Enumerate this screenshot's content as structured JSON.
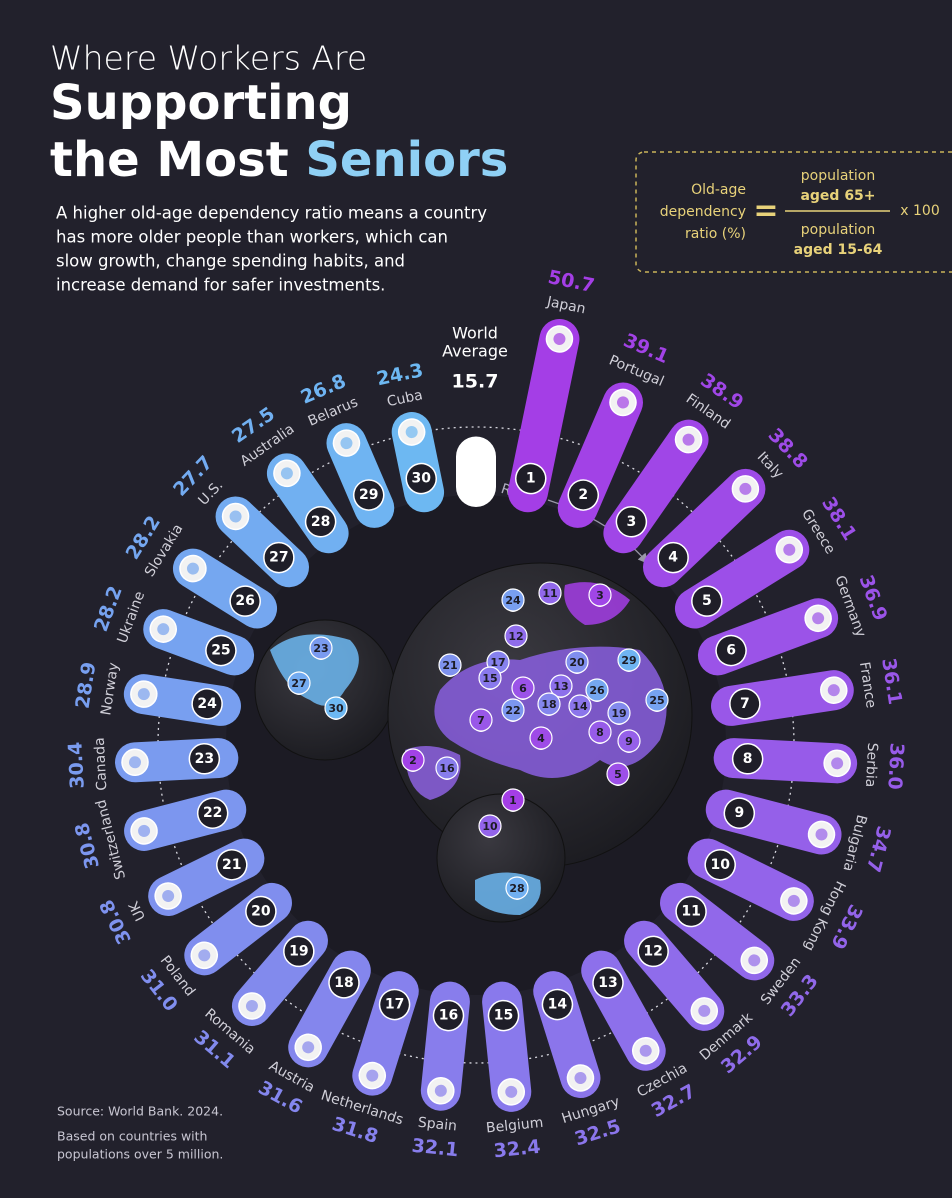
{
  "header": {
    "title": [
      "Where Workers Are",
      "Supporting",
      "the Most ",
      "Seniors"
    ],
    "description": [
      "A higher old-age dependency ratio means a country",
      "has more older people than workers, which can",
      "slow growth, change spending habits, and",
      "increase demand for safer investments."
    ]
  },
  "formula": {
    "label": [
      "Old-age",
      "dependency",
      "ratio (%)"
    ],
    "equals": "=",
    "numerator": [
      "population",
      "aged 65+"
    ],
    "denominator": [
      "population",
      "aged 15-64"
    ],
    "multiplier": "x 100"
  },
  "chart_data": {
    "type": "radial_bar",
    "categories": [
      "Japan",
      "Portugal",
      "Finland",
      "Italy",
      "Greece",
      "Germany",
      "France",
      "Serbia",
      "Bulgaria",
      "Hong Kong",
      "Sweden",
      "Denmark",
      "Czechia",
      "Hungary",
      "Belgium",
      "Spain",
      "Netherlands",
      "Austria",
      "Romania",
      "Poland",
      "UK",
      "Switzerland",
      "Canada",
      "Norway",
      "Ukraine",
      "Slovakia",
      "U.S.",
      "Australia",
      "Belarus",
      "Cuba"
    ],
    "values": [
      50.7,
      39.1,
      38.9,
      38.8,
      38.1,
      36.9,
      36.1,
      36.0,
      34.7,
      33.9,
      33.3,
      32.9,
      32.7,
      32.5,
      32.4,
      32.1,
      31.8,
      31.6,
      31.1,
      31.0,
      30.8,
      30.8,
      30.4,
      28.9,
      28.2,
      28.2,
      27.7,
      27.5,
      26.8,
      24.3
    ],
    "value_labels": [
      "50.7",
      "39.1",
      "38.9",
      "38.8",
      "38.1",
      "36.9",
      "36.1",
      "36.0",
      "34.7",
      "33.9",
      "33.3",
      "32.9",
      "32.7",
      "32.5",
      "32.4",
      "32.1",
      "31.8",
      "31.6",
      "31.1",
      "31.0",
      "30.8",
      "30.8",
      "30.4",
      "28.9",
      "28.2",
      "28.2",
      "27.7",
      "27.5",
      "26.8",
      "24.3"
    ],
    "ranks": [
      1,
      2,
      3,
      4,
      5,
      6,
      7,
      8,
      9,
      10,
      11,
      12,
      13,
      14,
      15,
      16,
      17,
      18,
      19,
      20,
      21,
      22,
      23,
      24,
      25,
      26,
      27,
      28,
      29,
      30
    ],
    "colors": [
      "#a43ee6",
      "#6db8f2"
    ],
    "world_average": {
      "label": [
        "World",
        "Average"
      ],
      "value": 15.7
    },
    "rank_label": "Rank"
  },
  "map_pins": [
    24,
    11,
    3,
    12,
    21,
    17,
    15,
    6,
    20,
    29,
    13,
    26,
    25,
    22,
    18,
    14,
    7,
    19,
    4,
    8,
    9,
    2,
    16,
    5,
    1,
    10,
    23,
    27,
    30,
    28
  ],
  "source": "Source: World Bank. 2024.",
  "note": [
    "Based on countries with",
    "populations over 5 million."
  ]
}
